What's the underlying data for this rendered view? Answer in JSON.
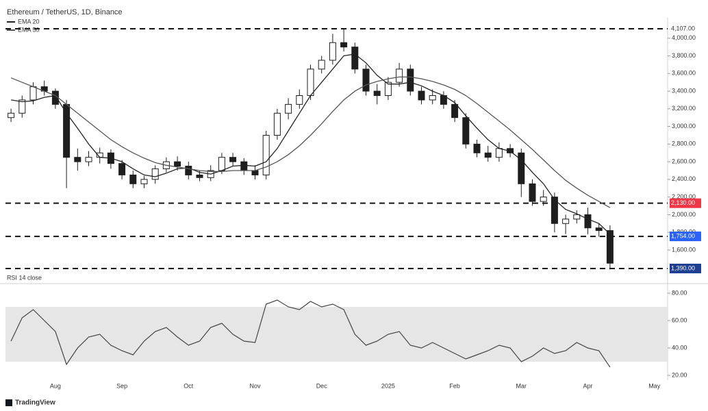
{
  "chart_data": [
    {
      "type": "candlestick",
      "title": "Ethereum / TetherUS, 1D, Binance",
      "categories": [
        null,
        null,
        null,
        null,
        "Aug",
        null,
        null,
        null,
        null,
        null,
        "Sep",
        null,
        null,
        null,
        null,
        null,
        "Oct",
        null,
        null,
        null,
        null,
        null,
        "Nov",
        null,
        null,
        null,
        null,
        null,
        "Dec",
        null,
        null,
        null,
        null,
        null,
        "2025",
        null,
        null,
        null,
        null,
        null,
        "Feb",
        null,
        null,
        null,
        null,
        null,
        "Mar",
        null,
        null,
        null,
        null,
        null,
        "Apr",
        null,
        null,
        null,
        null,
        null,
        "May",
        null
      ],
      "open": [
        3100,
        3150,
        3300,
        3450,
        3400,
        3250,
        2650,
        2600,
        2650,
        2700,
        2580,
        2450,
        2350,
        2400,
        2520,
        2600,
        2550,
        2450,
        2420,
        2500,
        2650,
        2600,
        2500,
        2450,
        2900,
        3150,
        3250,
        3350,
        3650,
        3750,
        3950,
        3900,
        3650,
        3400,
        3350,
        3500,
        3650,
        3400,
        3300,
        3350,
        3250,
        3100,
        2800,
        2700,
        2650,
        2750,
        2700,
        2350,
        2150,
        2200,
        1900,
        1950,
        2000,
        1850,
        1820,
        null,
        null,
        null,
        null,
        null
      ],
      "high": [
        3200,
        3350,
        3500,
        3520,
        3430,
        3300,
        2750,
        2720,
        2760,
        2740,
        2620,
        2500,
        2440,
        2560,
        2650,
        2660,
        2600,
        2500,
        2560,
        2700,
        2700,
        2640,
        2560,
        2950,
        3200,
        3320,
        3420,
        3700,
        3800,
        4050,
        4100,
        3950,
        3700,
        3480,
        3560,
        3720,
        3700,
        3450,
        3420,
        3400,
        3300,
        3150,
        2850,
        2780,
        2820,
        2800,
        2750,
        2400,
        2280,
        2250,
        2000,
        2050,
        2080,
        1900,
        1880,
        null,
        null,
        null,
        null,
        null
      ],
      "low": [
        3050,
        3100,
        3250,
        3350,
        3200,
        2300,
        2500,
        2550,
        2580,
        2520,
        2400,
        2300,
        2300,
        2350,
        2480,
        2500,
        2400,
        2380,
        2380,
        2460,
        2550,
        2450,
        2400,
        2400,
        2850,
        3080,
        3200,
        3300,
        3600,
        3700,
        3850,
        3600,
        3350,
        3250,
        3300,
        3450,
        3350,
        3250,
        3250,
        3200,
        3050,
        2750,
        2650,
        2600,
        2600,
        2650,
        2200,
        2100,
        2100,
        1800,
        1780,
        1900,
        1780,
        1750,
        1380,
        null,
        null,
        null,
        null,
        null
      ],
      "close": [
        3150,
        3300,
        3450,
        3400,
        3250,
        2650,
        2600,
        2650,
        2700,
        2580,
        2450,
        2350,
        2400,
        2520,
        2600,
        2550,
        2450,
        2420,
        2500,
        2650,
        2600,
        2500,
        2450,
        2900,
        3150,
        3250,
        3350,
        3650,
        3750,
        3950,
        3900,
        3650,
        3400,
        3350,
        3500,
        3650,
        3400,
        3300,
        3350,
        3250,
        3100,
        2800,
        2700,
        2650,
        2750,
        2700,
        2350,
        2150,
        2200,
        1900,
        1950,
        2000,
        1850,
        1820,
        1450,
        null,
        null,
        null,
        null,
        null
      ],
      "up_color": "#ffffff",
      "down_color": "#1e1e1e",
      "series": [
        {
          "name": "EMA 20",
          "color": "#222222",
          "values": [
            3300,
            3280,
            3290,
            3330,
            3350,
            3150,
            2980,
            2800,
            2650,
            2640,
            2600,
            2520,
            2450,
            2430,
            2470,
            2520,
            2530,
            2480,
            2460,
            2500,
            2550,
            2560,
            2550,
            2600,
            2750,
            2950,
            3150,
            3350,
            3500,
            3650,
            3800,
            3820,
            3720,
            3580,
            3480,
            3480,
            3500,
            3460,
            3400,
            3350,
            3270,
            3120,
            2980,
            2850,
            2750,
            2720,
            2620,
            2480,
            2350,
            2170,
            2060,
            2010,
            1950,
            1900,
            1780,
            null,
            null,
            null,
            null,
            null
          ]
        },
        {
          "name": "EMA 50",
          "color": "#555555",
          "values": [
            3550,
            3500,
            3450,
            3400,
            3350,
            3250,
            3150,
            3050,
            2950,
            2850,
            2770,
            2700,
            2640,
            2590,
            2560,
            2540,
            2520,
            2500,
            2490,
            2490,
            2500,
            2500,
            2500,
            2540,
            2600,
            2680,
            2780,
            2900,
            3030,
            3170,
            3300,
            3400,
            3470,
            3510,
            3540,
            3560,
            3560,
            3540,
            3510,
            3470,
            3420,
            3350,
            3260,
            3160,
            3060,
            2960,
            2850,
            2740,
            2620,
            2500,
            2390,
            2300,
            2220,
            2150,
            2080,
            null,
            null,
            null,
            null,
            null
          ]
        }
      ],
      "levels": {
        "values": [
          4107,
          2130,
          1754,
          1390
        ],
        "value_labels": [
          "4,107.00",
          "2,130.00",
          "1,754.00",
          "1,390.00"
        ],
        "colors": [
          "#ffffff",
          "#f23645",
          "#2962ff",
          "#1c3f94"
        ]
      },
      "ylim": [
        1250,
        4200
      ],
      "yticks": [
        {
          "value": 1600,
          "label": "1,600.00"
        },
        {
          "value": 1800,
          "label": "1,800.00"
        },
        {
          "value": 2000,
          "label": "2,000.00"
        },
        {
          "value": 2200,
          "label": "2,200.00"
        },
        {
          "value": 2400,
          "label": "2,400.00"
        },
        {
          "value": 2600,
          "label": "2,600.00"
        },
        {
          "value": 2800,
          "label": "2,800.00"
        },
        {
          "value": 3000,
          "label": "3,000.00"
        },
        {
          "value": 3200,
          "label": "3,200.00"
        },
        {
          "value": 3400,
          "label": "3,400.00"
        },
        {
          "value": 3600,
          "label": "3,600.00"
        },
        {
          "value": 3800,
          "label": "3,800.00"
        },
        {
          "value": 4000,
          "label": "4,000.00"
        }
      ],
      "grid": false
    },
    {
      "type": "line",
      "name": "RSI 14 close",
      "color": "#444444",
      "values": [
        45,
        62,
        68,
        60,
        52,
        28,
        40,
        48,
        50,
        42,
        38,
        35,
        45,
        52,
        55,
        48,
        42,
        45,
        55,
        58,
        50,
        45,
        44,
        72,
        75,
        70,
        68,
        74,
        70,
        72,
        68,
        50,
        42,
        45,
        50,
        52,
        42,
        40,
        44,
        40,
        36,
        32,
        35,
        38,
        42,
        40,
        30,
        34,
        40,
        36,
        38,
        44,
        40,
        38,
        26,
        null,
        null,
        null,
        null,
        null
      ],
      "band": [
        30,
        70
      ],
      "band_color": "#e6e6e6",
      "ylim": [
        19,
        85
      ],
      "yticks": [
        {
          "value": 20,
          "label": "20.00"
        },
        {
          "value": 40,
          "label": "40.00"
        },
        {
          "value": 60,
          "label": "60.00"
        },
        {
          "value": 80,
          "label": "80.00"
        }
      ]
    }
  ],
  "footer": {
    "brand": "TradingView"
  }
}
